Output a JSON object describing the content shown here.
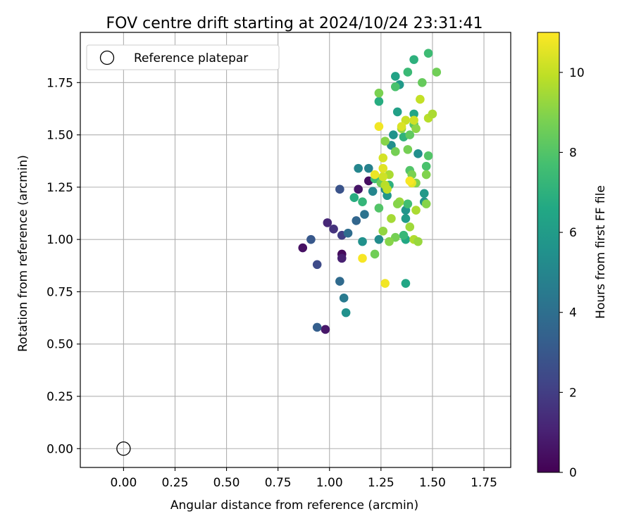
{
  "chart_data": {
    "type": "scatter",
    "title": "FOV centre drift starting at 2024/10/24 23:31:41",
    "xlabel": "Angular distance from reference (arcmin)",
    "ylabel": "Rotation from reference (arcmin)",
    "xlim": [
      -0.21,
      1.88
    ],
    "ylim": [
      -0.09,
      1.99
    ],
    "xticks": [
      "0.00",
      "0.25",
      "0.50",
      "0.75",
      "1.00",
      "1.25",
      "1.50",
      "1.75"
    ],
    "yticks": [
      "0.00",
      "0.25",
      "0.50",
      "0.75",
      "1.00",
      "1.25",
      "1.50",
      "1.75"
    ],
    "grid": true,
    "legend": {
      "placement": "top-left",
      "entries": [
        "Reference platepar"
      ]
    },
    "reference_point": {
      "x": 0.0,
      "y": 0.0
    },
    "colorbar": {
      "label": "Hours from first FF file",
      "min": 0,
      "max": 11,
      "ticks": [
        "0",
        "2",
        "4",
        "6",
        "8",
        "10"
      ],
      "colormap": "viridis"
    },
    "series": [
      {
        "points": [
          {
            "x": 0.87,
            "y": 0.96,
            "c": 0.5
          },
          {
            "x": 0.98,
            "y": 0.57,
            "c": 0.7
          },
          {
            "x": 1.06,
            "y": 0.93,
            "c": 0.3
          },
          {
            "x": 1.06,
            "y": 0.91,
            "c": 1.0
          },
          {
            "x": 1.14,
            "y": 1.24,
            "c": 0.6
          },
          {
            "x": 1.19,
            "y": 1.28,
            "c": 0.4
          },
          {
            "x": 0.99,
            "y": 1.08,
            "c": 1.2
          },
          {
            "x": 1.02,
            "y": 1.05,
            "c": 1.6
          },
          {
            "x": 1.06,
            "y": 1.02,
            "c": 2.0
          },
          {
            "x": 0.94,
            "y": 0.88,
            "c": 2.5
          },
          {
            "x": 0.91,
            "y": 1.0,
            "c": 3.0
          },
          {
            "x": 1.05,
            "y": 1.24,
            "c": 2.8
          },
          {
            "x": 0.94,
            "y": 0.58,
            "c": 3.3
          },
          {
            "x": 1.05,
            "y": 0.8,
            "c": 3.8
          },
          {
            "x": 1.09,
            "y": 1.03,
            "c": 3.9
          },
          {
            "x": 1.13,
            "y": 1.09,
            "c": 3.6
          },
          {
            "x": 1.07,
            "y": 0.72,
            "c": 4.5
          },
          {
            "x": 1.08,
            "y": 0.65,
            "c": 5.5
          },
          {
            "x": 1.14,
            "y": 1.34,
            "c": 5.0
          },
          {
            "x": 1.16,
            "y": 0.99,
            "c": 5.5
          },
          {
            "x": 1.17,
            "y": 1.12,
            "c": 4.2
          },
          {
            "x": 1.19,
            "y": 1.34,
            "c": 4.8
          },
          {
            "x": 1.21,
            "y": 1.23,
            "c": 5.0
          },
          {
            "x": 1.24,
            "y": 1.0,
            "c": 5.3
          },
          {
            "x": 1.27,
            "y": 1.24,
            "c": 5.2
          },
          {
            "x": 1.28,
            "y": 1.21,
            "c": 5.8
          },
          {
            "x": 1.3,
            "y": 1.45,
            "c": 5.4
          },
          {
            "x": 1.31,
            "y": 1.5,
            "c": 5.6
          },
          {
            "x": 1.33,
            "y": 1.61,
            "c": 6.2
          },
          {
            "x": 1.32,
            "y": 1.78,
            "c": 6.3
          },
          {
            "x": 1.34,
            "y": 1.74,
            "c": 5.9
          },
          {
            "x": 1.37,
            "y": 1.14,
            "c": 5.7
          },
          {
            "x": 1.37,
            "y": 1.1,
            "c": 6.0
          },
          {
            "x": 1.37,
            "y": 1.0,
            "c": 6.6
          },
          {
            "x": 1.37,
            "y": 0.79,
            "c": 6.5
          },
          {
            "x": 1.43,
            "y": 1.41,
            "c": 5.4
          },
          {
            "x": 1.46,
            "y": 1.22,
            "c": 5.9
          },
          {
            "x": 1.46,
            "y": 1.18,
            "c": 5.6
          },
          {
            "x": 1.41,
            "y": 1.6,
            "c": 6.5
          },
          {
            "x": 1.24,
            "y": 1.66,
            "c": 6.8
          },
          {
            "x": 1.12,
            "y": 1.2,
            "c": 6.8
          },
          {
            "x": 1.16,
            "y": 1.18,
            "c": 7.2
          },
          {
            "x": 1.22,
            "y": 1.29,
            "c": 7.5
          },
          {
            "x": 1.29,
            "y": 1.26,
            "c": 7.0
          },
          {
            "x": 1.36,
            "y": 1.02,
            "c": 7.3
          },
          {
            "x": 1.38,
            "y": 1.17,
            "c": 7.6
          },
          {
            "x": 1.36,
            "y": 1.49,
            "c": 7.1
          },
          {
            "x": 1.41,
            "y": 1.86,
            "c": 7.0
          },
          {
            "x": 1.38,
            "y": 1.8,
            "c": 7.4
          },
          {
            "x": 1.48,
            "y": 1.89,
            "c": 7.5
          },
          {
            "x": 1.32,
            "y": 1.73,
            "c": 7.8
          },
          {
            "x": 1.45,
            "y": 1.75,
            "c": 8.4
          },
          {
            "x": 1.52,
            "y": 1.8,
            "c": 8.6
          },
          {
            "x": 1.24,
            "y": 1.7,
            "c": 8.8
          },
          {
            "x": 1.39,
            "y": 1.33,
            "c": 8.0
          },
          {
            "x": 1.47,
            "y": 1.35,
            "c": 7.8
          },
          {
            "x": 1.48,
            "y": 1.4,
            "c": 8.0
          },
          {
            "x": 1.41,
            "y": 1.55,
            "c": 8.1
          },
          {
            "x": 1.39,
            "y": 1.5,
            "c": 8.3
          },
          {
            "x": 1.24,
            "y": 1.15,
            "c": 8.0
          },
          {
            "x": 1.22,
            "y": 0.93,
            "c": 8.6
          },
          {
            "x": 1.25,
            "y": 1.27,
            "c": 8.5
          },
          {
            "x": 1.27,
            "y": 1.47,
            "c": 9.0
          },
          {
            "x": 1.32,
            "y": 1.42,
            "c": 8.7
          },
          {
            "x": 1.35,
            "y": 1.53,
            "c": 9.2
          },
          {
            "x": 1.4,
            "y": 1.31,
            "c": 8.8
          },
          {
            "x": 1.42,
            "y": 1.27,
            "c": 8.9
          },
          {
            "x": 1.47,
            "y": 1.31,
            "c": 8.9
          },
          {
            "x": 1.47,
            "y": 1.17,
            "c": 9.0
          },
          {
            "x": 1.42,
            "y": 1.53,
            "c": 9.1
          },
          {
            "x": 1.38,
            "y": 1.43,
            "c": 8.7
          },
          {
            "x": 1.34,
            "y": 1.18,
            "c": 9.3
          },
          {
            "x": 1.33,
            "y": 1.17,
            "c": 9.0
          },
          {
            "x": 1.32,
            "y": 1.01,
            "c": 8.7
          },
          {
            "x": 1.29,
            "y": 0.99,
            "c": 9.0
          },
          {
            "x": 1.26,
            "y": 1.04,
            "c": 9.2
          },
          {
            "x": 1.3,
            "y": 1.1,
            "c": 9.5
          },
          {
            "x": 1.39,
            "y": 1.06,
            "c": 9.4
          },
          {
            "x": 1.41,
            "y": 1.0,
            "c": 9.7
          },
          {
            "x": 1.42,
            "y": 1.14,
            "c": 9.6
          },
          {
            "x": 1.43,
            "y": 0.99,
            "c": 9.3
          },
          {
            "x": 1.29,
            "y": 1.31,
            "c": 9.6
          },
          {
            "x": 1.27,
            "y": 1.26,
            "c": 9.8
          },
          {
            "x": 1.26,
            "y": 1.39,
            "c": 10.3
          },
          {
            "x": 1.26,
            "y": 1.3,
            "c": 10.2
          },
          {
            "x": 1.26,
            "y": 1.34,
            "c": 10.5
          },
          {
            "x": 1.28,
            "y": 1.24,
            "c": 9.9
          },
          {
            "x": 1.37,
            "y": 1.57,
            "c": 10.1
          },
          {
            "x": 1.35,
            "y": 1.54,
            "c": 10.4
          },
          {
            "x": 1.41,
            "y": 1.57,
            "c": 10.2
          },
          {
            "x": 1.44,
            "y": 1.67,
            "c": 10.0
          },
          {
            "x": 1.48,
            "y": 1.58,
            "c": 9.8
          },
          {
            "x": 1.5,
            "y": 1.6,
            "c": 9.6
          },
          {
            "x": 1.4,
            "y": 1.27,
            "c": 10.6
          },
          {
            "x": 1.39,
            "y": 1.28,
            "c": 10.9
          },
          {
            "x": 1.24,
            "y": 1.54,
            "c": 10.8
          },
          {
            "x": 1.22,
            "y": 1.31,
            "c": 10.7
          },
          {
            "x": 1.16,
            "y": 0.91,
            "c": 10.9
          },
          {
            "x": 1.27,
            "y": 0.79,
            "c": 10.8
          }
        ]
      }
    ]
  }
}
